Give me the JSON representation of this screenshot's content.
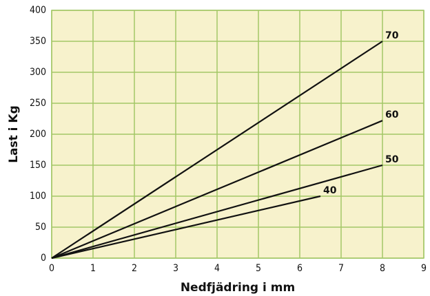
{
  "chart_data": {
    "type": "line",
    "xlabel": "Nedfjädring i mm",
    "ylabel": "Last i Kg",
    "xlim": [
      0,
      9
    ],
    "xticks": [
      0,
      1,
      2,
      3,
      4,
      5,
      6,
      7,
      8,
      9
    ],
    "ylim": [
      0,
      400
    ],
    "yticks": [
      0,
      50,
      100,
      150,
      200,
      250,
      300,
      350,
      400
    ],
    "grid": true,
    "grid_color": "#a3c766",
    "background": "#f7f2cc",
    "series": [
      {
        "name": "70",
        "color": "#111111",
        "x": [
          0,
          8
        ],
        "values": [
          0,
          350
        ]
      },
      {
        "name": "60",
        "color": "#111111",
        "x": [
          0,
          8
        ],
        "values": [
          0,
          222
        ]
      },
      {
        "name": "50",
        "color": "#111111",
        "x": [
          0,
          8
        ],
        "values": [
          0,
          150
        ]
      },
      {
        "name": "40",
        "color": "#111111",
        "x": [
          0,
          6.5
        ],
        "values": [
          0,
          100
        ]
      }
    ]
  }
}
